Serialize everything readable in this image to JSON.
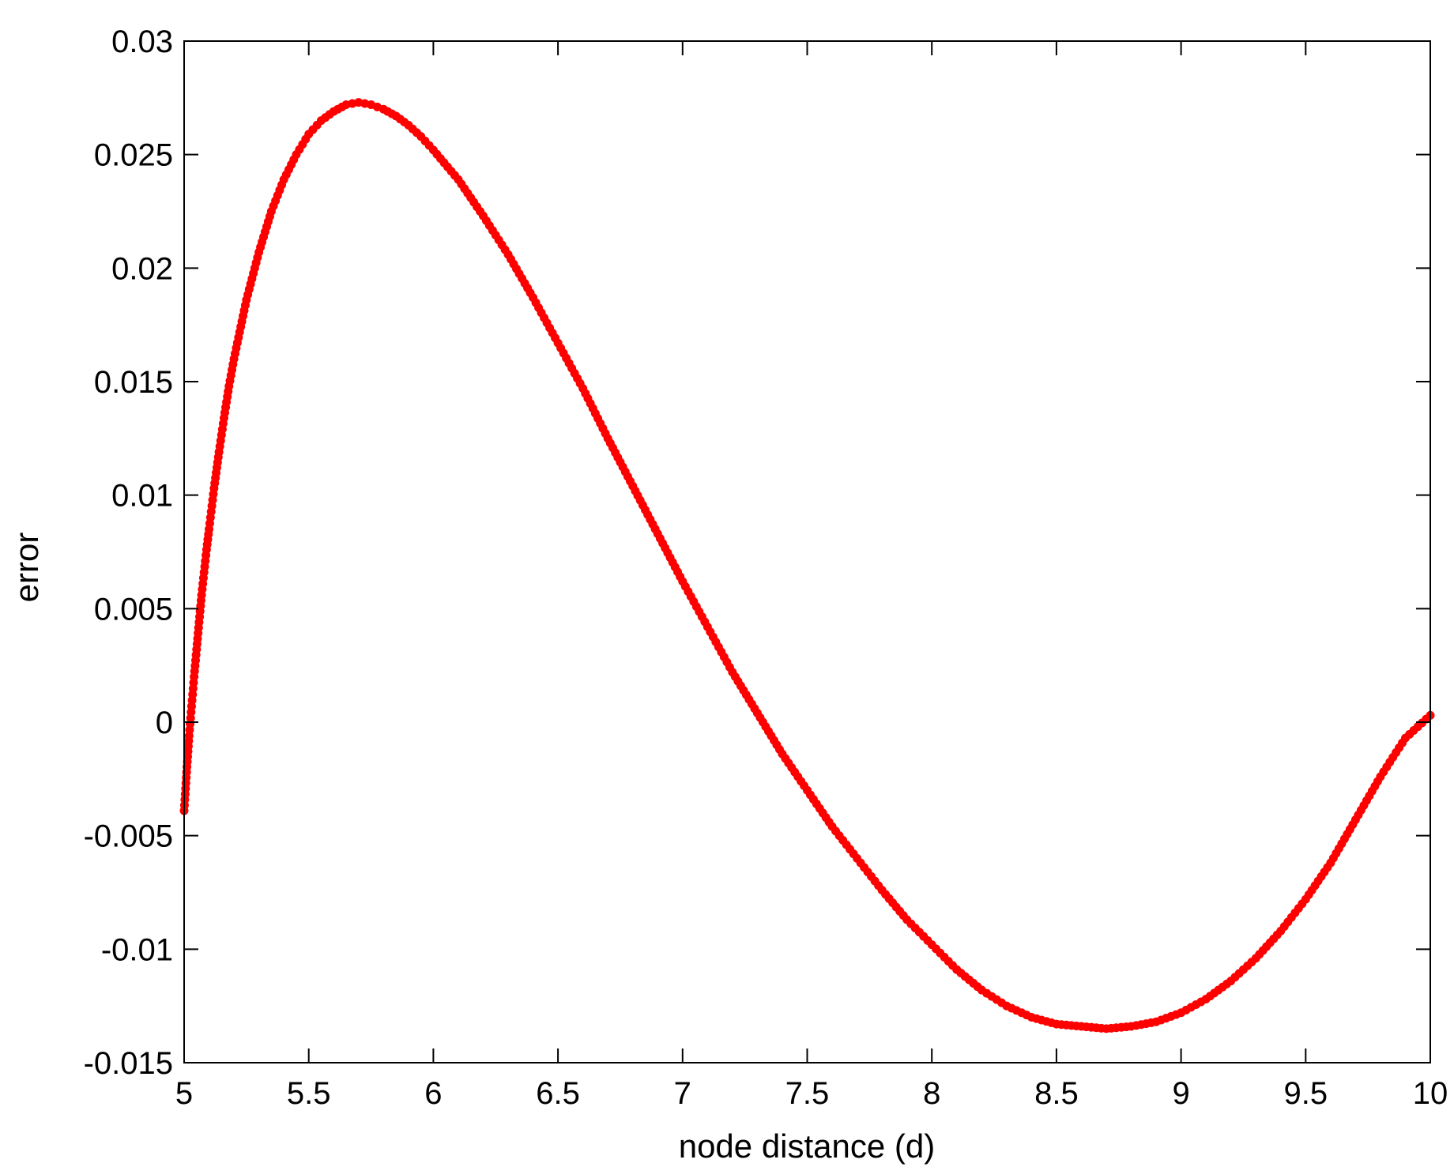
{
  "chart_data": {
    "type": "scatter",
    "title": "",
    "xlabel": "node distance (d)",
    "ylabel": "error",
    "xlim": [
      5,
      10
    ],
    "ylim": [
      -0.015,
      0.03
    ],
    "xticks": [
      5,
      5.5,
      6,
      6.5,
      7,
      7.5,
      8,
      8.5,
      9,
      9.5,
      10
    ],
    "xtick_labels": [
      "5",
      "5.5",
      "6",
      "6.5",
      "7",
      "7.5",
      "8",
      "8.5",
      "9",
      "9.5",
      "10"
    ],
    "yticks": [
      -0.015,
      -0.01,
      -0.005,
      0,
      0.005,
      0.01,
      0.015,
      0.02,
      0.025,
      0.03
    ],
    "ytick_labels": [
      "-0.015",
      "-0.01",
      "-0.005",
      "0",
      "0.005",
      "0.01",
      "0.015",
      "0.02",
      "0.025",
      "0.03"
    ],
    "grid": false,
    "series": [
      {
        "color": "#ff0000",
        "points": [
          [
            5.0,
            -0.0039
          ],
          [
            5.01,
            -0.0022
          ],
          [
            5.02,
            -0.0006
          ],
          [
            5.03,
            0.0007
          ],
          [
            5.04,
            0.002
          ],
          [
            5.05,
            0.0032
          ],
          [
            5.06,
            0.0044
          ],
          [
            5.07,
            0.0056
          ],
          [
            5.08,
            0.0066
          ],
          [
            5.09,
            0.0076
          ],
          [
            5.1,
            0.0085
          ],
          [
            5.12,
            0.0103
          ],
          [
            5.14,
            0.0119
          ],
          [
            5.16,
            0.0134
          ],
          [
            5.18,
            0.0148
          ],
          [
            5.2,
            0.016
          ],
          [
            5.25,
            0.0186
          ],
          [
            5.3,
            0.0207
          ],
          [
            5.35,
            0.0225
          ],
          [
            5.4,
            0.0239
          ],
          [
            5.45,
            0.025
          ],
          [
            5.5,
            0.0259
          ],
          [
            5.55,
            0.0265
          ],
          [
            5.6,
            0.0269
          ],
          [
            5.65,
            0.0272
          ],
          [
            5.7,
            0.0273
          ],
          [
            5.75,
            0.0272
          ],
          [
            5.8,
            0.027
          ],
          [
            5.85,
            0.0267
          ],
          [
            5.9,
            0.0263
          ],
          [
            5.95,
            0.0258
          ],
          [
            6.0,
            0.0252
          ],
          [
            6.1,
            0.0239
          ],
          [
            6.2,
            0.0223
          ],
          [
            6.3,
            0.0206
          ],
          [
            6.4,
            0.0187
          ],
          [
            6.5,
            0.0167
          ],
          [
            6.6,
            0.0147
          ],
          [
            6.7,
            0.0125
          ],
          [
            6.8,
            0.0104
          ],
          [
            6.9,
            0.0083
          ],
          [
            7.0,
            0.0062
          ],
          [
            7.1,
            0.0042
          ],
          [
            7.2,
            0.0022
          ],
          [
            7.3,
            0.0004
          ],
          [
            7.4,
            -0.0014
          ],
          [
            7.5,
            -0.003
          ],
          [
            7.6,
            -0.0046
          ],
          [
            7.7,
            -0.006
          ],
          [
            7.8,
            -0.0074
          ],
          [
            7.9,
            -0.0087
          ],
          [
            8.0,
            -0.0098
          ],
          [
            8.1,
            -0.0109
          ],
          [
            8.2,
            -0.0118
          ],
          [
            8.3,
            -0.0125
          ],
          [
            8.4,
            -0.013
          ],
          [
            8.5,
            -0.0133
          ],
          [
            8.6,
            -0.0134
          ],
          [
            8.7,
            -0.0135
          ],
          [
            8.8,
            -0.0134
          ],
          [
            8.9,
            -0.0132
          ],
          [
            9.0,
            -0.0128
          ],
          [
            9.1,
            -0.0122
          ],
          [
            9.2,
            -0.0114
          ],
          [
            9.3,
            -0.0104
          ],
          [
            9.4,
            -0.0092
          ],
          [
            9.5,
            -0.0078
          ],
          [
            9.6,
            -0.0062
          ],
          [
            9.7,
            -0.0043
          ],
          [
            9.8,
            -0.0024
          ],
          [
            9.9,
            -0.0007
          ],
          [
            10.0,
            0.0003
          ]
        ]
      }
    ]
  }
}
